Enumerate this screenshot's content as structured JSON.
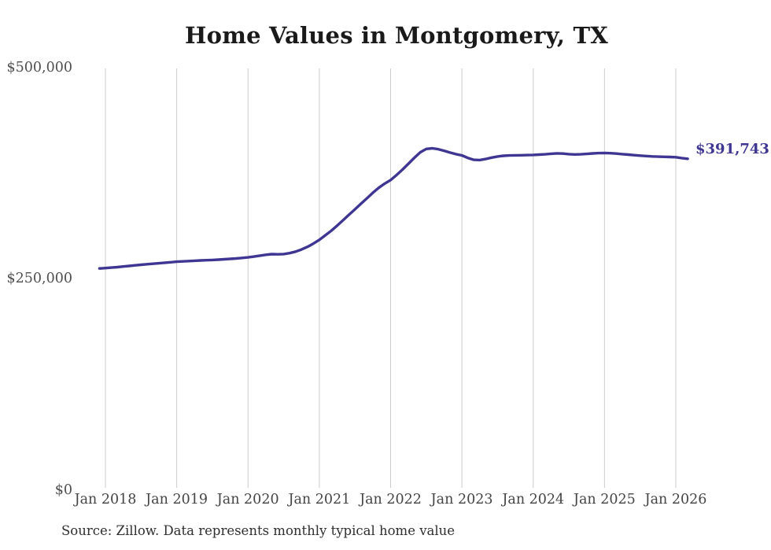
{
  "title": "Home Values in Montgomery, TX",
  "source_note": "Source: Zillow. Data represents monthly typical home value",
  "colors": {
    "line": "#3e3692",
    "grid": "#cccccc",
    "axis_text": "#4f4f4f",
    "title_text": "#1a1a1a",
    "source_text": "#2f2f2f",
    "end_label_text": "#3e3692",
    "background": "#ffffff"
  },
  "chart_data": {
    "type": "line",
    "title": "Home Values in Montgomery, TX",
    "series_name": "Typical home value (monthly)",
    "x_tick_labels": [
      "Jan 2018",
      "Jan 2019",
      "Jan 2020",
      "Jan 2021",
      "Jan 2022",
      "Jan 2023",
      "Jan 2024",
      "Jan 2025",
      "Jan 2026"
    ],
    "y_tick_labels": [
      "$0",
      "$250,000",
      "$500,000"
    ],
    "ylim": [
      0,
      500000
    ],
    "grid": "vertical-only",
    "legend": "none",
    "x_frequency": "monthly",
    "x_start_month": "2017-12",
    "x_end_month": "2026-03",
    "final_value": 391743,
    "final_value_label": "$391,743",
    "peak_value": 404200,
    "values": [
      261500,
      262000,
      262500,
      263100,
      263800,
      264500,
      265200,
      265900,
      266500,
      267100,
      267700,
      268300,
      268900,
      269500,
      269900,
      270300,
      270700,
      271000,
      271300,
      271600,
      272000,
      272400,
      272900,
      273400,
      274000,
      274700,
      275600,
      276700,
      277800,
      278500,
      278300,
      278600,
      279700,
      281500,
      284000,
      287200,
      291000,
      295500,
      300800,
      306300,
      312300,
      318800,
      325300,
      331800,
      338300,
      344800,
      351300,
      357300,
      362200,
      366500,
      372500,
      379000,
      386000,
      393000,
      399500,
      403500,
      404200,
      403200,
      401300,
      399200,
      397300,
      395800,
      392800,
      390600,
      390300,
      391500,
      393200,
      394500,
      395300,
      395700,
      395900,
      396000,
      396200,
      396400,
      396700,
      397100,
      397800,
      398200,
      397900,
      397300,
      396900,
      397100,
      397600,
      398100,
      398500,
      398700,
      398400,
      397900,
      397300,
      396700,
      396100,
      395500,
      395000,
      394600,
      394300,
      394100,
      393900,
      393600,
      392600,
      391743
    ]
  }
}
